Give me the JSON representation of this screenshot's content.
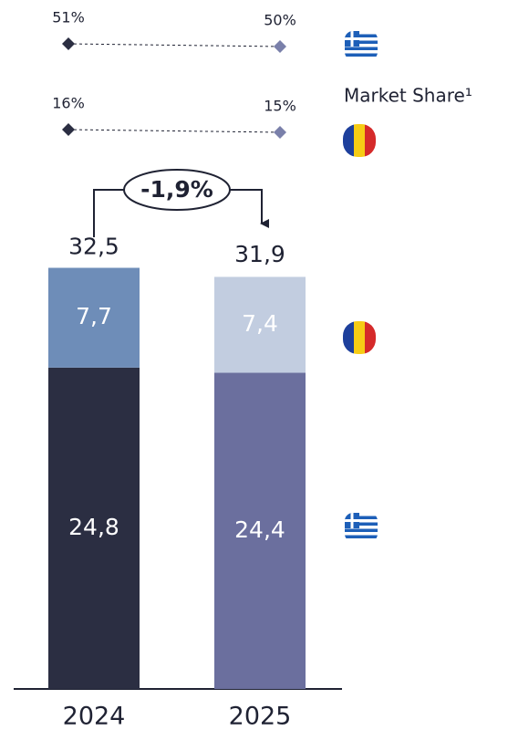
{
  "chart_data": {
    "type": "stacked_bar",
    "categories": [
      "2024",
      "2025"
    ],
    "series": [
      {
        "colors": [
          "#2b2e42",
          "#6b6f9e"
        ],
        "values": [
          24.8,
          24.4
        ],
        "value_labels": [
          "24,8",
          "24,4"
        ]
      },
      {
        "colors": [
          "#6e8db8",
          "#c2cde0"
        ],
        "values": [
          7.7,
          7.4
        ],
        "value_labels": [
          "7,7",
          "7,4"
        ]
      }
    ],
    "totals": [
      32.5,
      31.9
    ],
    "total_labels": [
      "32,5",
      "31,9"
    ],
    "change_annotation": "-1,9%",
    "market_share": {
      "label": "Market Share¹",
      "colors": [
        "#2b2e42",
        "#7a80aa"
      ],
      "series": [
        {
          "values": [
            51,
            50
          ],
          "value_labels": [
            "51%",
            "50%"
          ]
        },
        {
          "values": [
            16,
            15
          ],
          "value_labels": [
            "16%",
            "15%"
          ]
        }
      ]
    }
  }
}
